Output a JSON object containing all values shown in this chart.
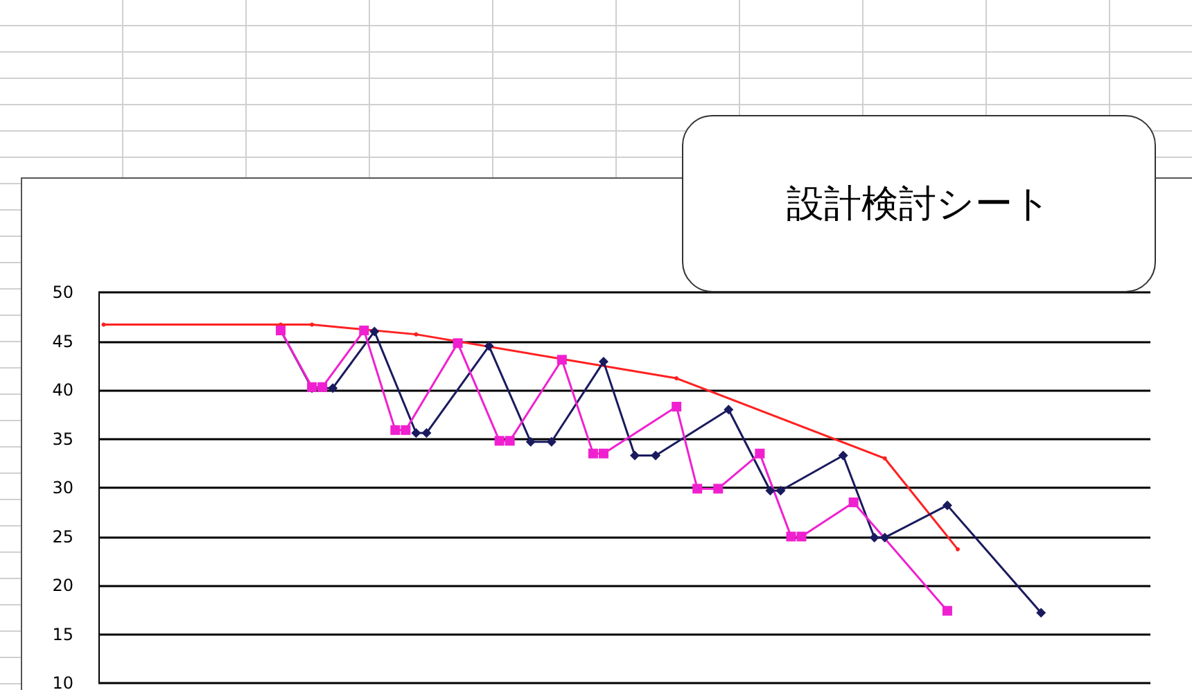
{
  "chart_data": {
    "type": "line",
    "annotations": [
      "設計検討シート"
    ],
    "categories": [
      null,
      null,
      null,
      null,
      null,
      null,
      null,
      null,
      null,
      null,
      null,
      null,
      null,
      null,
      null,
      null,
      null,
      null,
      null,
      null,
      null,
      null,
      null,
      null,
      null,
      null,
      null,
      null,
      null,
      null,
      null,
      null,
      null,
      null,
      null,
      null,
      null,
      null,
      null,
      null,
      null,
      null,
      null,
      null,
      null,
      null,
      null,
      null,
      null,
      null,
      null,
      null,
      null,
      null,
      null,
      null,
      null,
      null,
      null,
      null,
      null,
      null,
      null,
      null,
      null,
      null,
      null,
      null,
      null,
      null,
      null,
      null,
      null,
      null,
      null,
      null,
      null,
      null,
      null,
      null,
      null,
      null,
      null,
      null,
      null,
      null,
      null,
      null,
      null,
      null,
      null,
      null,
      null,
      null,
      null,
      null,
      null,
      null,
      null,
      null,
      null
    ],
    "ylim": [
      10,
      50
    ],
    "yticks": [
      10,
      15,
      20,
      25,
      30,
      35,
      40,
      45,
      50
    ],
    "tick_labels": "y",
    "grid": "y",
    "series": [
      {
        "color": "#ff2020",
        "marker": "circle",
        "values": [
          46.7,
          null,
          null,
          null,
          null,
          null,
          null,
          null,
          null,
          null,
          null,
          null,
          null,
          null,
          null,
          null,
          null,
          46.7,
          null,
          null,
          46.7,
          null,
          null,
          null,
          null,
          null,
          null,
          null,
          null,
          null,
          45.7,
          null,
          null,
          null,
          null,
          null,
          null,
          null,
          null,
          null,
          null,
          null,
          null,
          null,
          null,
          null,
          null,
          null,
          null,
          null,
          null,
          null,
          null,
          null,
          null,
          41.2,
          null,
          null,
          null,
          null,
          null,
          null,
          null,
          null,
          null,
          null,
          null,
          null,
          null,
          null,
          null,
          null,
          null,
          null,
          null,
          33.0,
          null,
          null,
          null,
          null,
          null,
          null,
          23.7,
          null,
          null,
          null,
          null,
          null,
          null,
          null,
          null,
          null,
          null,
          null,
          null,
          null,
          null,
          null,
          null,
          null,
          null
        ]
      },
      {
        "color": "#1a1a5e",
        "marker": "diamond",
        "values": [
          null,
          null,
          null,
          null,
          null,
          null,
          null,
          null,
          null,
          null,
          null,
          null,
          null,
          null,
          null,
          null,
          null,
          46.1,
          null,
          null,
          40.2,
          null,
          40.2,
          null,
          null,
          null,
          46.0,
          null,
          null,
          null,
          35.6,
          35.6,
          null,
          null,
          null,
          null,
          null,
          44.5,
          null,
          null,
          null,
          34.7,
          null,
          34.7,
          null,
          null,
          null,
          null,
          42.9,
          null,
          null,
          33.3,
          null,
          33.3,
          null,
          null,
          null,
          null,
          null,
          null,
          38.0,
          null,
          null,
          null,
          29.7,
          29.7,
          null,
          null,
          null,
          null,
          null,
          33.3,
          null,
          null,
          24.9,
          24.9,
          null,
          null,
          null,
          null,
          null,
          28.2,
          null,
          null,
          null,
          null,
          null,
          null,
          null,
          null,
          17.2,
          null,
          null,
          null,
          null,
          null,
          null,
          null,
          null,
          null,
          null
        ]
      },
      {
        "color": "#f020d0",
        "marker": "square",
        "values": [
          null,
          null,
          null,
          null,
          null,
          null,
          null,
          null,
          null,
          null,
          null,
          null,
          null,
          null,
          null,
          null,
          null,
          46.1,
          null,
          null,
          40.3,
          40.3,
          null,
          null,
          null,
          46.1,
          null,
          null,
          35.9,
          35.9,
          null,
          null,
          null,
          null,
          44.8,
          null,
          null,
          null,
          34.8,
          34.8,
          null,
          null,
          null,
          null,
          43.1,
          null,
          null,
          33.5,
          33.5,
          null,
          null,
          null,
          null,
          null,
          null,
          38.3,
          null,
          29.9,
          null,
          29.9,
          null,
          null,
          null,
          33.5,
          null,
          null,
          25.0,
          25.0,
          null,
          null,
          null,
          null,
          28.5,
          null,
          null,
          null,
          null,
          null,
          null,
          null,
          null,
          17.4,
          null,
          null,
          null,
          null,
          null,
          null,
          null,
          null,
          null,
          null,
          null,
          null,
          null,
          null,
          null,
          null,
          null,
          null,
          null
        ]
      }
    ]
  }
}
